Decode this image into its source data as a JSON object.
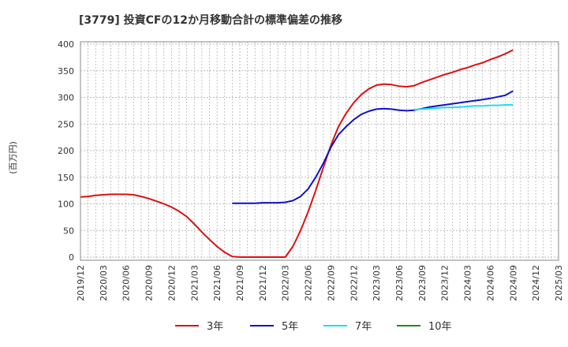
{
  "chart_data": {
    "type": "line",
    "title": "[3779]  投資CFの12か月移動合計の標準偏差の推移",
    "ylabel": "(百万円)",
    "ylim": [
      0,
      400
    ],
    "yticks": [
      0,
      50,
      100,
      150,
      200,
      250,
      300,
      350,
      400
    ],
    "xlim": [
      "2019-12",
      "2025-03"
    ],
    "xticks": [
      "2019/12",
      "2020/03",
      "2020/06",
      "2020/09",
      "2020/12",
      "2021/03",
      "2021/06",
      "2021/09",
      "2021/12",
      "2022/03",
      "2022/06",
      "2022/09",
      "2022/12",
      "2023/03",
      "2023/06",
      "2023/09",
      "2023/12",
      "2024/03",
      "2024/06",
      "2024/09",
      "2024/12",
      "2025/03"
    ],
    "grid": true,
    "legend_position": "bottom",
    "series": [
      {
        "name": "3年",
        "color": "#dd1111",
        "x": [
          "2019-12",
          "2020-01",
          "2020-02",
          "2020-03",
          "2020-04",
          "2020-05",
          "2020-06",
          "2020-07",
          "2020-08",
          "2020-09",
          "2020-10",
          "2020-11",
          "2020-12",
          "2021-01",
          "2021-02",
          "2021-03",
          "2021-04",
          "2021-05",
          "2021-06",
          "2021-07",
          "2021-08",
          "2021-09",
          "2021-10",
          "2021-11",
          "2021-12",
          "2022-01",
          "2022-02",
          "2022-03",
          "2022-04",
          "2022-05",
          "2022-06",
          "2022-07",
          "2022-08",
          "2022-09",
          "2022-10",
          "2022-11",
          "2022-12",
          "2023-01",
          "2023-02",
          "2023-03",
          "2023-04",
          "2023-05",
          "2023-06",
          "2023-07",
          "2023-08",
          "2023-09",
          "2023-10",
          "2023-11",
          "2023-12",
          "2024-01",
          "2024-02",
          "2024-03",
          "2024-04",
          "2024-05",
          "2024-06",
          "2024-07",
          "2024-08",
          "2024-09"
        ],
        "values": [
          113,
          114,
          116,
          117,
          118,
          118,
          118,
          117,
          114,
          110,
          105,
          100,
          94,
          86,
          76,
          62,
          47,
          33,
          20,
          9,
          1,
          0,
          0,
          0,
          0,
          0,
          0,
          0,
          20,
          50,
          85,
          125,
          168,
          210,
          245,
          270,
          290,
          305,
          316,
          323,
          325,
          324,
          321,
          320,
          322,
          328,
          333,
          338,
          343,
          347,
          352,
          356,
          361,
          365,
          371,
          376,
          382,
          389
        ]
      },
      {
        "name": "5年",
        "color": "#1111cc",
        "x": [
          "2021-08",
          "2021-09",
          "2021-10",
          "2021-11",
          "2021-12",
          "2022-01",
          "2022-02",
          "2022-03",
          "2022-04",
          "2022-05",
          "2022-06",
          "2022-07",
          "2022-08",
          "2022-09",
          "2022-10",
          "2022-11",
          "2022-12",
          "2023-01",
          "2023-02",
          "2023-03",
          "2023-04",
          "2023-05",
          "2023-06",
          "2023-07",
          "2023-08",
          "2023-09",
          "2023-10",
          "2023-11",
          "2023-12",
          "2024-01",
          "2024-02",
          "2024-03",
          "2024-04",
          "2024-05",
          "2024-06",
          "2024-07",
          "2024-08",
          "2024-09"
        ],
        "values": [
          101,
          101,
          101,
          101,
          102,
          102,
          102,
          103,
          106,
          114,
          128,
          150,
          176,
          206,
          230,
          245,
          258,
          268,
          274,
          278,
          279,
          278,
          276,
          275,
          276,
          279,
          282,
          284,
          286,
          288,
          290,
          292,
          294,
          296,
          298,
          301,
          304,
          312
        ]
      },
      {
        "name": "7年",
        "color": "#22ddee",
        "x": [
          "2023-08",
          "2023-09",
          "2023-10",
          "2023-11",
          "2023-12",
          "2024-01",
          "2024-02",
          "2024-03",
          "2024-04",
          "2024-05",
          "2024-06",
          "2024-07",
          "2024-08",
          "2024-09"
        ],
        "values": [
          277,
          278,
          279,
          280,
          281,
          281,
          282,
          283,
          284,
          284,
          285,
          285,
          286,
          286
        ]
      },
      {
        "name": "10年",
        "color": "#228822",
        "x": [],
        "values": []
      }
    ]
  }
}
